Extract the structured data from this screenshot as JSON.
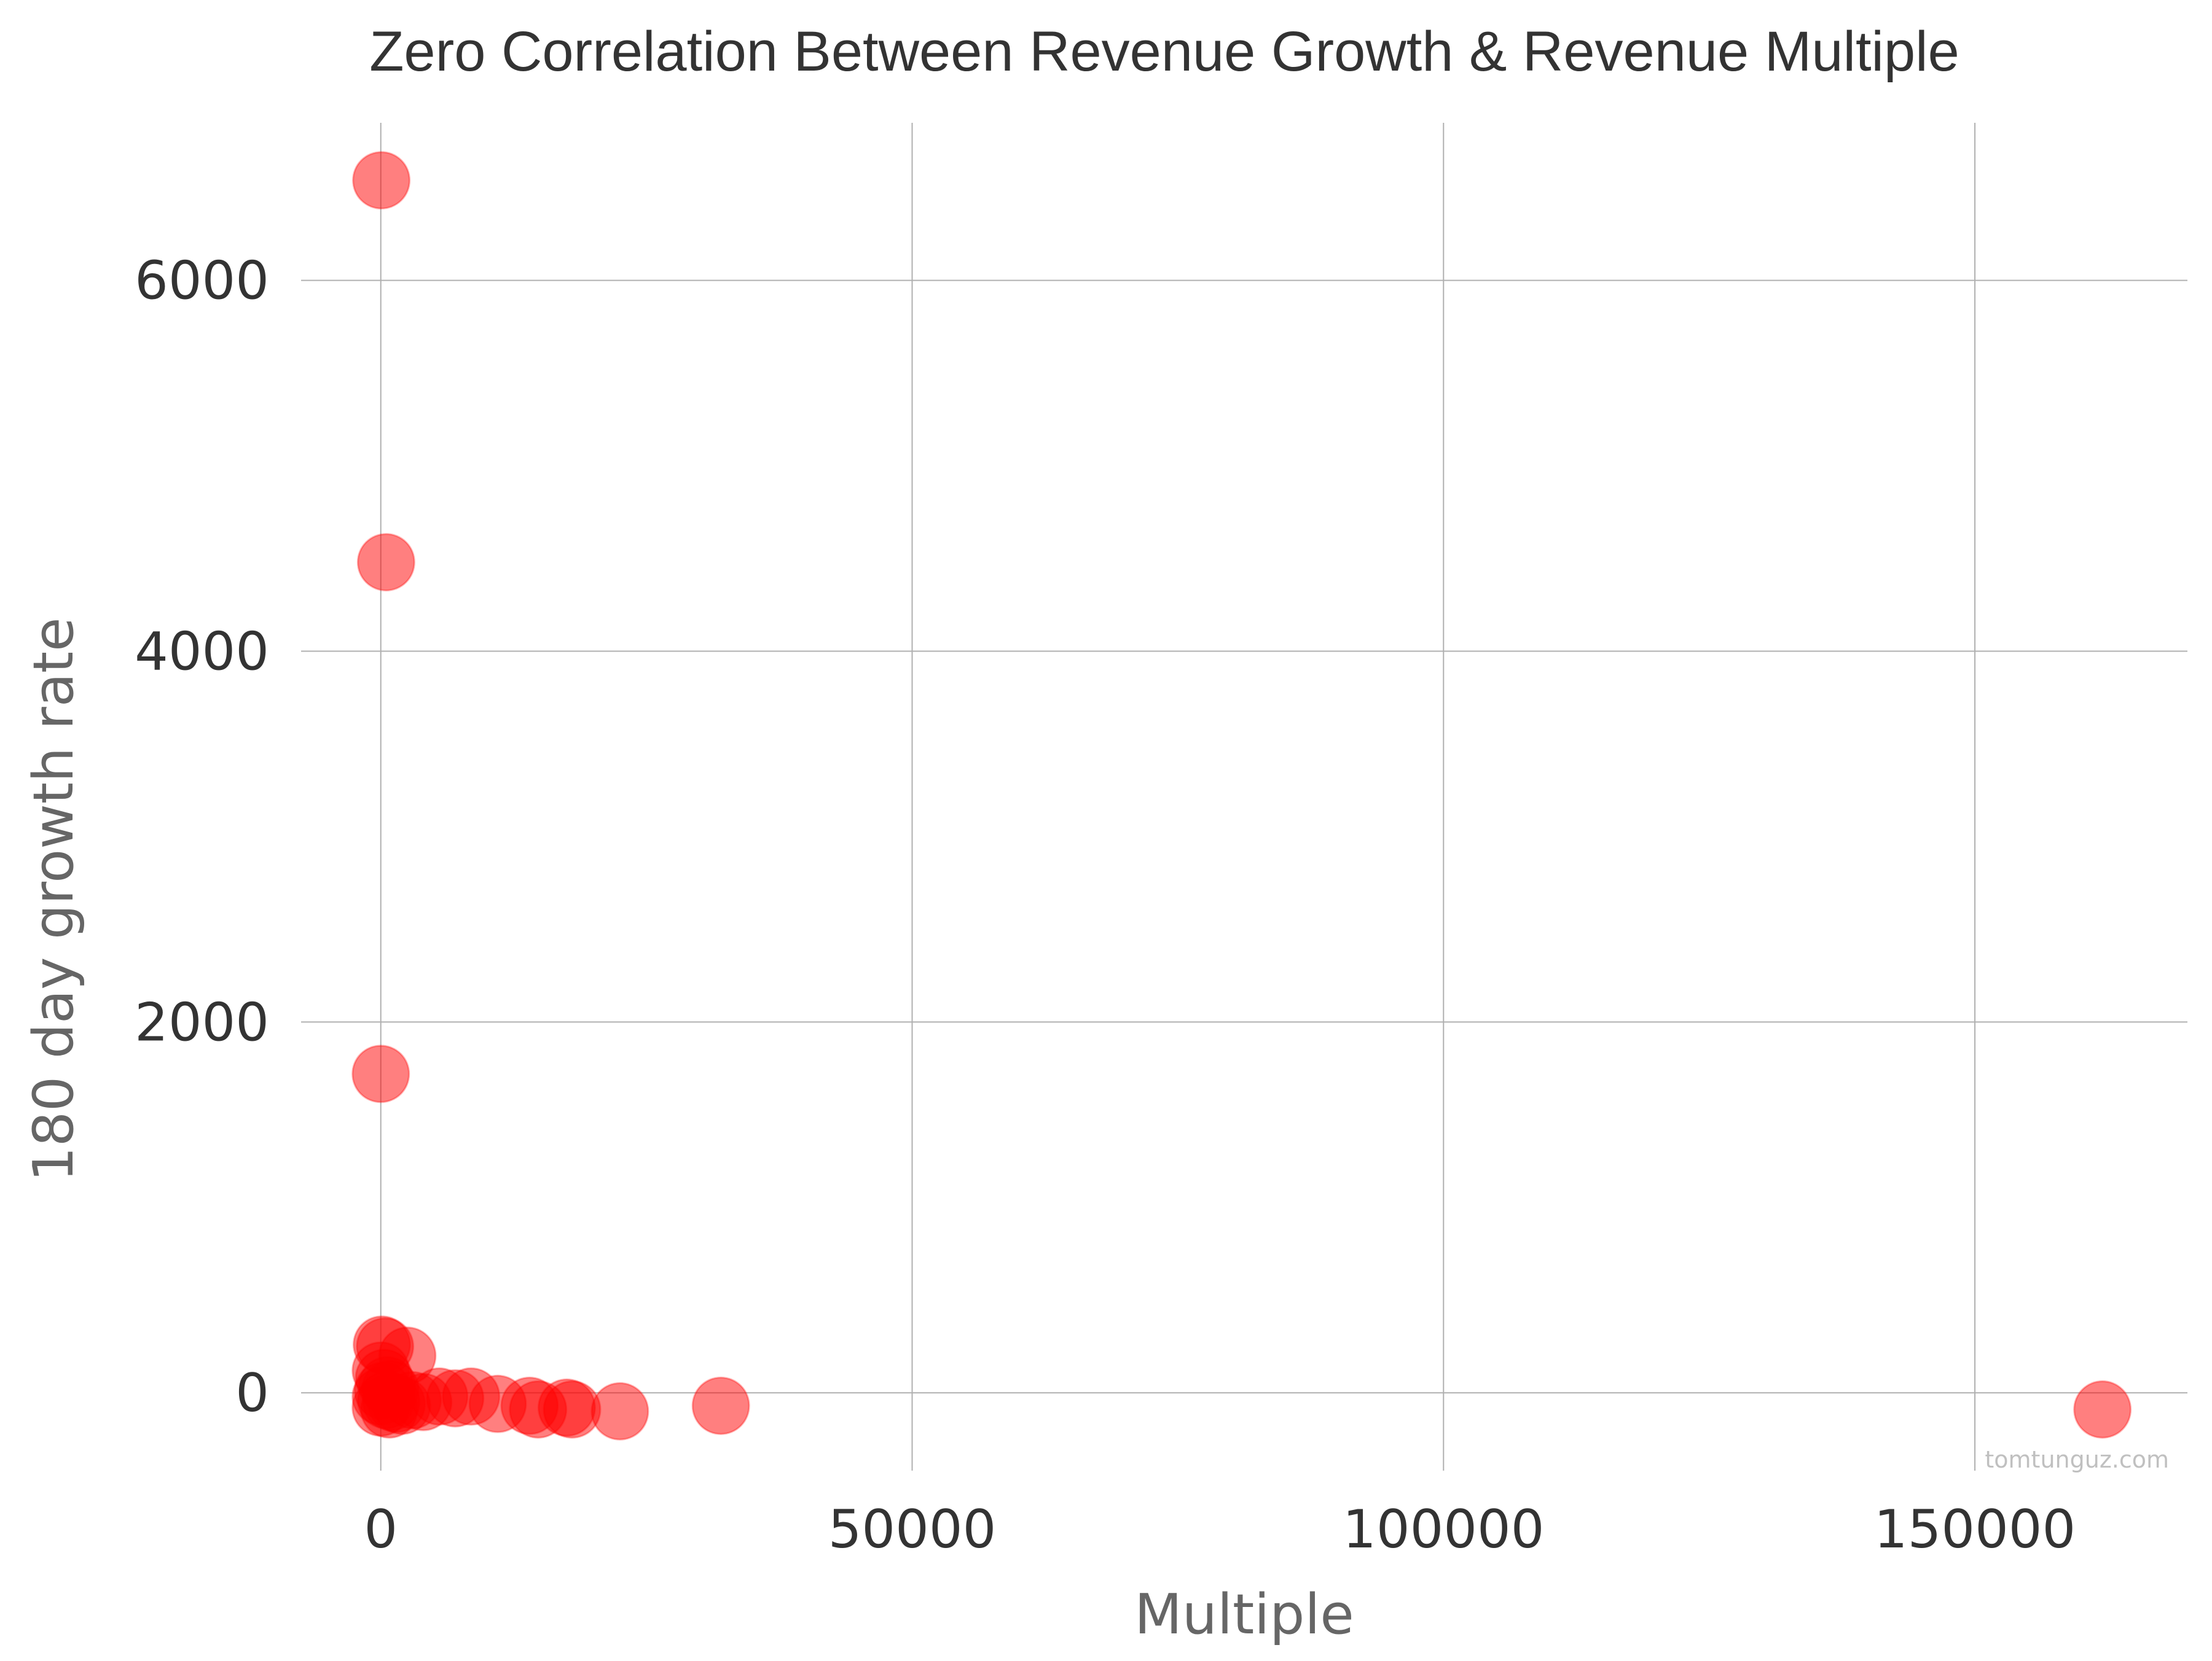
{
  "chart_data": {
    "type": "scatter",
    "title": "Zero Correlation Between Revenue Growth & Revenue Multiple",
    "xlabel": "Multiple",
    "ylabel": "180 day growth rate",
    "xlim": [
      -7500,
      170000
    ],
    "ylim": [
      -420,
      6850
    ],
    "x_ticks": [
      0,
      50000,
      100000,
      150000
    ],
    "y_ticks": [
      0,
      2000,
      4000,
      6000
    ],
    "grid": true,
    "color": "#ff0000",
    "points": [
      {
        "x": 50,
        "y": 6540
      },
      {
        "x": 500,
        "y": 4480
      },
      {
        "x": 0,
        "y": 1720
      },
      {
        "x": 100,
        "y": 260
      },
      {
        "x": 400,
        "y": 250
      },
      {
        "x": 2500,
        "y": 200
      },
      {
        "x": 0,
        "y": 120
      },
      {
        "x": 300,
        "y": 80
      },
      {
        "x": 600,
        "y": 40
      },
      {
        "x": 900,
        "y": 20
      },
      {
        "x": 200,
        "y": 10
      },
      {
        "x": 0,
        "y": -20
      },
      {
        "x": 500,
        "y": -40
      },
      {
        "x": 1000,
        "y": -50
      },
      {
        "x": 1500,
        "y": -60
      },
      {
        "x": 0,
        "y": -80
      },
      {
        "x": 800,
        "y": -90
      },
      {
        "x": 2000,
        "y": -70
      },
      {
        "x": 3000,
        "y": -40
      },
      {
        "x": 4000,
        "y": -50
      },
      {
        "x": 5500,
        "y": -20
      },
      {
        "x": 7000,
        "y": -30
      },
      {
        "x": 8500,
        "y": -20
      },
      {
        "x": 11000,
        "y": -60
      },
      {
        "x": 14000,
        "y": -70
      },
      {
        "x": 14800,
        "y": -90
      },
      {
        "x": 17500,
        "y": -80
      },
      {
        "x": 18000,
        "y": -90
      },
      {
        "x": 22500,
        "y": -100
      },
      {
        "x": 32000,
        "y": -70
      },
      {
        "x": 162000,
        "y": -90
      }
    ]
  },
  "watermark": "tomtunguz.com"
}
